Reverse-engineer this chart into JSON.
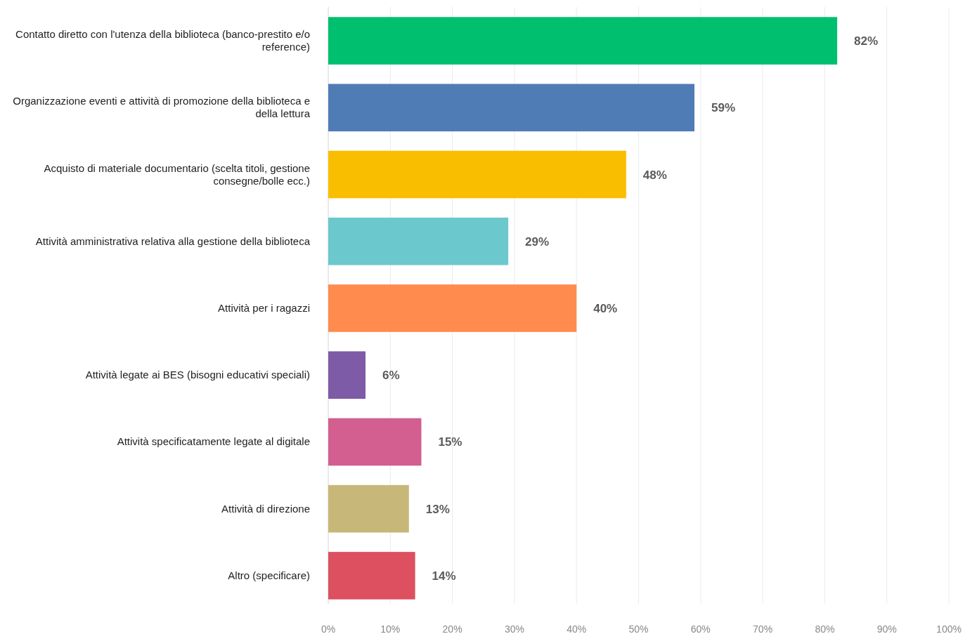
{
  "chart_data": {
    "type": "bar",
    "orientation": "horizontal",
    "categories": [
      "Contatto diretto con l'utenza della biblioteca (banco-prestito e/o reference)",
      "Organizzazione eventi e attività di promozione della biblioteca e della lettura",
      "Acquisto di materiale documentario (scelta titoli, gestione consegne/bolle ecc.)",
      "Attività amministrativa relativa alla gestione della biblioteca",
      "Attività per i ragazzi",
      "Attività legate ai BES (bisogni educativi speciali)",
      "Attività specificatamente legate al digitale",
      "Attività di direzione",
      "Altro (specificare)"
    ],
    "values": [
      82,
      59,
      48,
      29,
      40,
      6,
      15,
      13,
      14
    ],
    "value_labels": [
      "82%",
      "59%",
      "48%",
      "29%",
      "40%",
      "6%",
      "15%",
      "13%",
      "14%"
    ],
    "colors": [
      "#00bf6f",
      "#507cb6",
      "#f9be00",
      "#6bc8cd",
      "#ff8b4f",
      "#7d5ba6",
      "#d25f90",
      "#c7b879",
      "#dc5060"
    ],
    "xlim": [
      0,
      100
    ],
    "xticks": [
      {
        "value": 0,
        "label": "0%"
      },
      {
        "value": 10,
        "label": "10%"
      },
      {
        "value": 20,
        "label": "20%"
      },
      {
        "value": 30,
        "label": "30%"
      },
      {
        "value": 40,
        "label": "40%"
      },
      {
        "value": 50,
        "label": "50%"
      },
      {
        "value": 60,
        "label": "60%"
      },
      {
        "value": 70,
        "label": "70%"
      },
      {
        "value": 80,
        "label": "80%"
      },
      {
        "value": 90,
        "label": "90%"
      },
      {
        "value": 100,
        "label": "100%"
      }
    ],
    "grid": "x"
  }
}
